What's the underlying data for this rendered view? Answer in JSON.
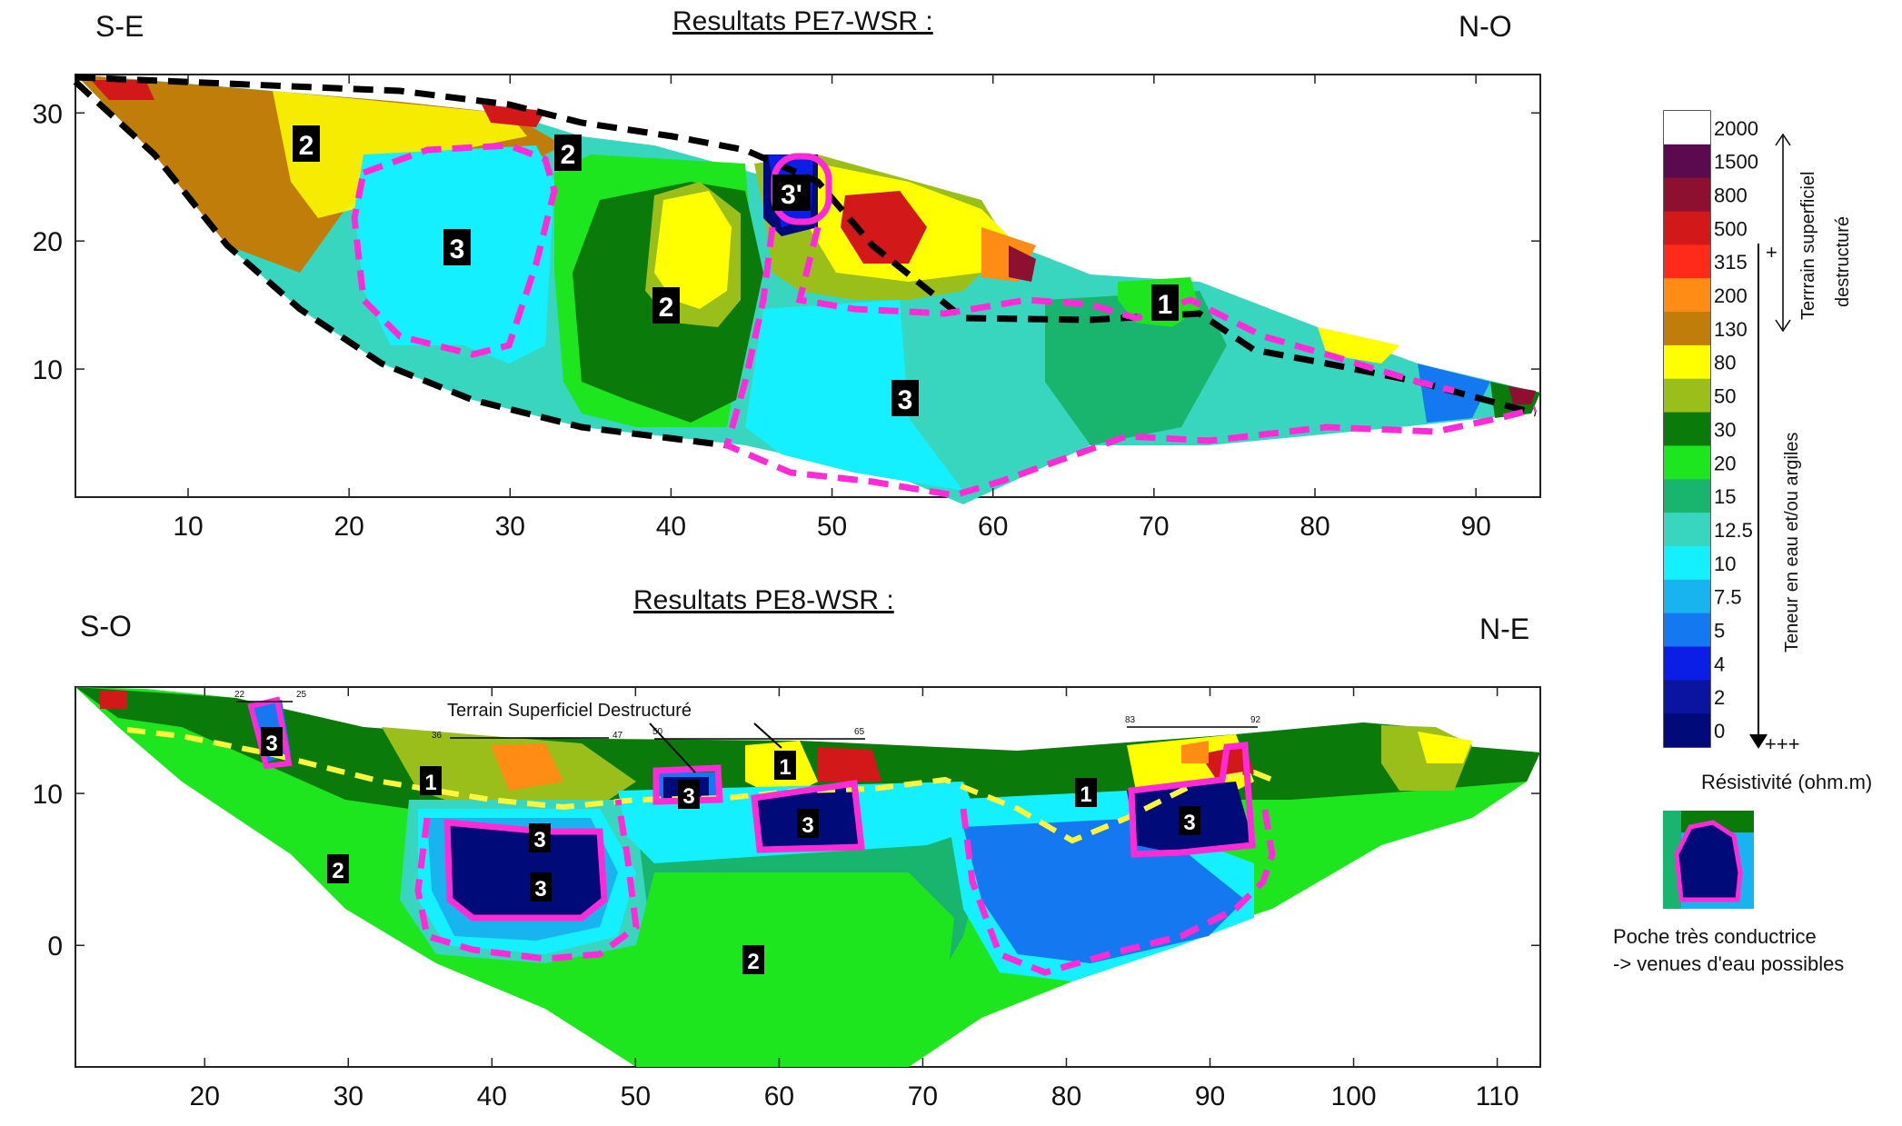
{
  "charts": [
    {
      "title": "Resultats PE7-WSR :",
      "left_dir": "S-E",
      "right_dir": "N-O",
      "x_ticks": [
        "10",
        "20",
        "30",
        "40",
        "50",
        "60",
        "70",
        "80",
        "90"
      ],
      "y_ticks": [
        "10",
        "20",
        "30"
      ],
      "zone_labels": [
        "2",
        "2",
        "3",
        "2",
        "3'",
        "1",
        "3"
      ]
    },
    {
      "title": "Resultats PE8-WSR :",
      "left_dir": "S-O",
      "right_dir": "N-E",
      "annotation": "Terrain Superficiel Destructuré",
      "x_ticks": [
        "20",
        "30",
        "40",
        "50",
        "60",
        "70",
        "80",
        "90",
        "100",
        "110"
      ],
      "y_ticks": [
        "0",
        "10"
      ],
      "zone_labels": [
        "3",
        "1",
        "2",
        "3",
        "3",
        "1",
        "3",
        "2",
        "3",
        "1",
        "3"
      ],
      "marker_labels": [
        "22",
        "25",
        "36",
        "47",
        "50",
        "65",
        "83",
        "92"
      ]
    }
  ],
  "legend": {
    "values": [
      "2000",
      "1500",
      "800",
      "500",
      "315",
      "200",
      "130",
      "80",
      "50",
      "30",
      "20",
      "15",
      "12.5",
      "10",
      "7.5",
      "5",
      "4",
      "2",
      "0"
    ],
    "colors": [
      "#ffffff",
      "#5b0a50",
      "#8e1030",
      "#d21818",
      "#ff2a1a",
      "#ff8c14",
      "#c17d0a",
      "#ffff00",
      "#9abf1a",
      "#0a7a0a",
      "#1ee61e",
      "#19b46e",
      "#38d6be",
      "#14f0ff",
      "#18b4f0",
      "#1478f0",
      "#0a1ee6",
      "#0a14a0",
      "#000a78"
    ],
    "side_top": "Terrrain superficiel",
    "side_top2": "destructuré",
    "plus": "+",
    "side_bottom": "Teneur en eau et/ou argiles",
    "plus3": "+++",
    "unit": "Résistivité (ohm.m)",
    "pocket_label_1": "Poche très conductrice",
    "pocket_label_2": " -> venues d'eau possibles"
  },
  "chart_data": [
    {
      "type": "heatmap",
      "title": "Resultats PE7-WSR :",
      "x_ticks": [
        10,
        20,
        30,
        40,
        50,
        60,
        70,
        80,
        90
      ],
      "y_ticks": [
        10,
        20,
        30
      ],
      "xlim": [
        3,
        94
      ],
      "ylim": [
        0,
        33
      ]
    },
    {
      "type": "heatmap",
      "title": "Resultats PE8-WSR :",
      "x_ticks": [
        20,
        30,
        40,
        50,
        60,
        70,
        80,
        90,
        100,
        110
      ],
      "y_ticks": [
        0,
        10
      ],
      "xlim": [
        11,
        113
      ],
      "ylim": [
        -8,
        17
      ]
    }
  ]
}
